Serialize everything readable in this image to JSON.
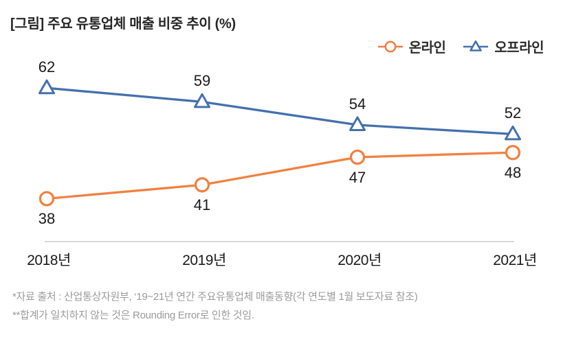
{
  "title": "[그림] 주요 유통업체 매출 비중 추이 (%)",
  "legend": [
    {
      "label": "온라인",
      "marker": "circle-icon",
      "color": "#F08142"
    },
    {
      "label": "오프라인",
      "marker": "triangle-icon",
      "color": "#4470AD"
    }
  ],
  "chart_data": {
    "type": "line",
    "categories": [
      "2018년",
      "2019년",
      "2020년",
      "2021년"
    ],
    "series": [
      {
        "name": "온라인",
        "marker": "circle",
        "color": "#F08142",
        "values": [
          38,
          41,
          47,
          48
        ],
        "label_position": "below"
      },
      {
        "name": "오프라인",
        "marker": "triangle",
        "color": "#4470AD",
        "values": [
          62,
          59,
          54,
          52
        ],
        "label_position": "above"
      }
    ],
    "title": "[그림] 주요 유통업체 매출 비중 추이 (%)",
    "xlabel": "",
    "ylabel": "",
    "ylim": [
      30,
      70
    ],
    "grid": false,
    "legend_position": "top-right",
    "data_labels": true,
    "axis_line_color": "#cccccc"
  },
  "footnotes": [
    "*자료 출처 : 산업통상자원부, ‘19~21년 연간 주요유통업체 매출동향(각 연도별 1월 보도자료 참조)",
    "**합계가 일치하지 않는 것은 Rounding Error로 인한 것임."
  ]
}
